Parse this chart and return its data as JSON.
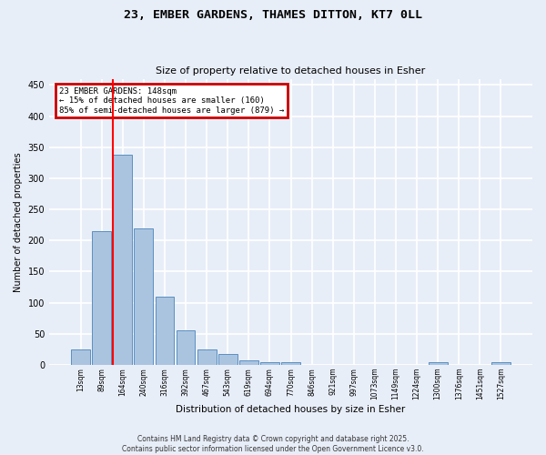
{
  "title_line1": "23, EMBER GARDENS, THAMES DITTON, KT7 0LL",
  "title_line2": "Size of property relative to detached houses in Esher",
  "xlabel": "Distribution of detached houses by size in Esher",
  "ylabel": "Number of detached properties",
  "categories": [
    "13sqm",
    "89sqm",
    "164sqm",
    "240sqm",
    "316sqm",
    "392sqm",
    "467sqm",
    "543sqm",
    "619sqm",
    "694sqm",
    "770sqm",
    "846sqm",
    "921sqm",
    "997sqm",
    "1073sqm",
    "1149sqm",
    "1224sqm",
    "1300sqm",
    "1376sqm",
    "1451sqm",
    "1527sqm"
  ],
  "values": [
    25,
    215,
    338,
    220,
    110,
    55,
    25,
    18,
    8,
    5,
    5,
    0,
    0,
    0,
    0,
    0,
    0,
    5,
    0,
    0,
    5
  ],
  "bar_color": "#aac4e0",
  "bar_edge_color": "#5a8fc0",
  "red_line_index": 2,
  "annotation_title": "23 EMBER GARDENS: 148sqm",
  "annotation_line2": "← 15% of detached houses are smaller (160)",
  "annotation_line3": "85% of semi-detached houses are larger (879) →",
  "annotation_box_color": "#cc0000",
  "ylim": [
    0,
    460
  ],
  "yticks": [
    0,
    50,
    100,
    150,
    200,
    250,
    300,
    350,
    400,
    450
  ],
  "footnote1": "Contains HM Land Registry data © Crown copyright and database right 2025.",
  "footnote2": "Contains public sector information licensed under the Open Government Licence v3.0.",
  "background_color": "#e8eef8",
  "grid_color": "#ffffff",
  "fig_bg_color": "#e8eef8"
}
